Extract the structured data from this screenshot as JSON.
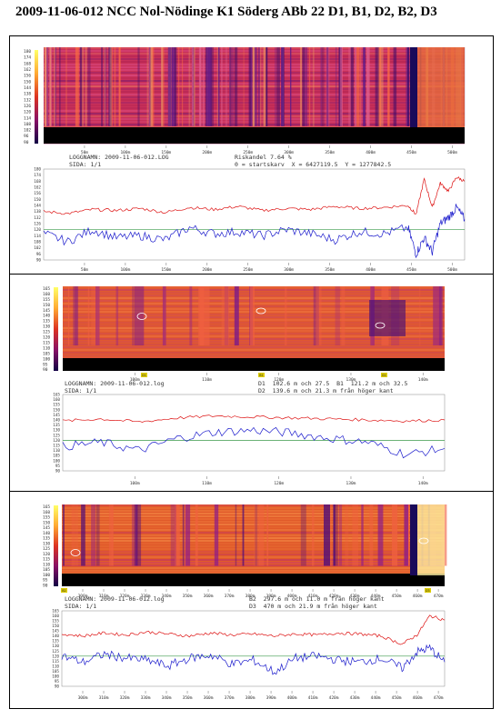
{
  "page_title": "2009-11-06-012 NCC Nol-Nödinge K1 Söderg ABb 22 D1, B1, D2, B2, D3",
  "panels": [
    {
      "heatmap_yticks": [
        "180",
        "174",
        "168",
        "162",
        "156",
        "150",
        "144",
        "138",
        "132",
        "126",
        "120",
        "114",
        "108",
        "102",
        "96",
        "90"
      ],
      "heatmap_xticks": [
        "50m",
        "100m",
        "150m",
        "200m",
        "250m",
        "300m",
        "350m",
        "400m",
        "450m",
        "500m"
      ],
      "info_left": [
        "LOGGNAMN: 2009-11-06-012.LOG",
        "SIDA: 1/1"
      ],
      "info_right": [
        "Riskandel 7.64 %",
        "0 = startskarv  X = 6427119.5  Y = 1277842.5"
      ],
      "markers": []
    },
    {
      "heatmap_yticks": [
        "165",
        "160",
        "155",
        "150",
        "145",
        "140",
        "135",
        "130",
        "125",
        "120",
        "115",
        "110",
        "105",
        "100",
        "95",
        "90"
      ],
      "heatmap_xticks": [
        "100m",
        "110m",
        "120m",
        "130m",
        "140m"
      ],
      "info_left": [
        "LOGGNAMN: 2009-11-06-012.log",
        "SIDA: 1/1"
      ],
      "info_right": [
        "D1  102.6 m och 27.5  B1  121.2 m och 32.5",
        "D2  139.6 m och 21.3 m från höger kant"
      ],
      "markers": [
        "D1",
        "B1",
        "D2"
      ]
    },
    {
      "heatmap_yticks": [
        "165",
        "160",
        "155",
        "150",
        "145",
        "140",
        "135",
        "130",
        "125",
        "120",
        "115",
        "110",
        "105",
        "100",
        "95",
        "90"
      ],
      "heatmap_xticks": [
        "300m",
        "310m",
        "320m",
        "330m",
        "340m",
        "350m",
        "360m",
        "370m",
        "380m",
        "390m",
        "400m",
        "410m",
        "420m",
        "430m",
        "440m",
        "450m",
        "460m",
        "470m"
      ],
      "info_left": [
        "LOGGNAMN: 2009-11-06-012.log",
        "SIDA: 1/1"
      ],
      "info_right": [
        "B2  297.6 m och 11.0 m från höger kant",
        "D3  470 m och 21.9 m från höger kant"
      ],
      "markers": [
        "B2",
        "D3"
      ]
    }
  ],
  "chart_data": [
    {
      "type": "line",
      "panel": 1,
      "x_range_m": [
        0,
        520
      ],
      "ylim": [
        90,
        180
      ],
      "yticks": [
        180,
        174,
        168,
        162,
        156,
        150,
        144,
        138,
        132,
        126,
        120,
        114,
        108,
        102,
        96,
        90
      ],
      "xticks": [
        "50m",
        "100m",
        "150m",
        "200m",
        "250m",
        "300m",
        "350m",
        "400m",
        "450m",
        "500m"
      ],
      "reference_line": 120,
      "series": [
        {
          "color": "#dd1111",
          "x": [
            0,
            30,
            60,
            90,
            120,
            150,
            180,
            210,
            240,
            270,
            300,
            330,
            360,
            390,
            420,
            450,
            460,
            470,
            480,
            490,
            500,
            510,
            520
          ],
          "values": [
            138,
            136,
            140,
            139,
            141,
            137,
            142,
            140,
            143,
            139,
            141,
            140,
            143,
            141,
            142,
            144,
            135,
            170,
            142,
            166,
            158,
            172,
            168
          ]
        },
        {
          "color": "#1a1acc",
          "x": [
            0,
            30,
            60,
            90,
            120,
            150,
            180,
            210,
            240,
            270,
            300,
            330,
            360,
            390,
            420,
            450,
            460,
            470,
            480,
            490,
            500,
            510,
            520
          ],
          "values": [
            116,
            108,
            120,
            112,
            114,
            110,
            122,
            116,
            118,
            114,
            120,
            116,
            110,
            118,
            116,
            122,
            96,
            112,
            98,
            126,
            132,
            142,
            130
          ]
        }
      ],
      "colors": {
        "red": "#dd1111",
        "blue": "#1a1acc",
        "reference": "#3a9a4a"
      }
    },
    {
      "type": "line",
      "panel": 2,
      "x_range_m": [
        95,
        145
      ],
      "ylim": [
        90,
        165
      ],
      "yticks": [
        165,
        160,
        155,
        150,
        145,
        140,
        135,
        130,
        125,
        120,
        115,
        110,
        105,
        100,
        95,
        90
      ],
      "xticks": [
        "100m",
        "110m",
        "120m",
        "130m",
        "140m"
      ],
      "reference_line": 120,
      "series": [
        {
          "color": "#dd1111",
          "x": [
            95,
            100,
            105,
            110,
            115,
            120,
            125,
            130,
            135,
            140,
            145
          ],
          "values": [
            139,
            141,
            138,
            142,
            144,
            143,
            142,
            141,
            140,
            139,
            140
          ]
        },
        {
          "color": "#1a1acc",
          "x": [
            95,
            100,
            105,
            110,
            115,
            120,
            125,
            130,
            135,
            140,
            145
          ],
          "values": [
            114,
            118,
            110,
            122,
            128,
            130,
            127,
            122,
            118,
            106,
            112
          ]
        }
      ],
      "colors": {
        "red": "#dd1111",
        "blue": "#1a1acc",
        "reference": "#3a9a4a"
      }
    },
    {
      "type": "line",
      "panel": 3,
      "x_range_m": [
        295,
        475
      ],
      "ylim": [
        90,
        165
      ],
      "yticks": [
        165,
        160,
        155,
        150,
        145,
        140,
        135,
        130,
        125,
        120,
        115,
        110,
        105,
        100,
        95,
        90
      ],
      "xticks": [
        "300m",
        "310m",
        "320m",
        "330m",
        "340m",
        "350m",
        "360m",
        "370m",
        "380m",
        "390m",
        "400m",
        "410m",
        "420m",
        "430m",
        "440m",
        "450m",
        "460m",
        "470m"
      ],
      "reference_line": 120,
      "series": [
        {
          "color": "#dd1111",
          "x": [
            295,
            305,
            315,
            325,
            335,
            345,
            355,
            365,
            375,
            385,
            395,
            405,
            415,
            425,
            435,
            445,
            455,
            462,
            468,
            475
          ],
          "values": [
            142,
            140,
            143,
            141,
            144,
            142,
            140,
            143,
            141,
            142,
            140,
            142,
            141,
            143,
            142,
            140,
            132,
            141,
            160,
            156
          ]
        },
        {
          "color": "#1a1acc",
          "x": [
            295,
            305,
            315,
            325,
            335,
            345,
            355,
            365,
            375,
            385,
            395,
            405,
            415,
            425,
            435,
            445,
            455,
            462,
            468,
            475
          ],
          "values": [
            120,
            114,
            122,
            118,
            116,
            110,
            118,
            121,
            112,
            116,
            104,
            118,
            120,
            116,
            114,
            118,
            108,
            124,
            128,
            114
          ]
        }
      ],
      "colors": {
        "red": "#dd1111",
        "blue": "#1a1acc",
        "reference": "#3a9a4a"
      }
    }
  ]
}
